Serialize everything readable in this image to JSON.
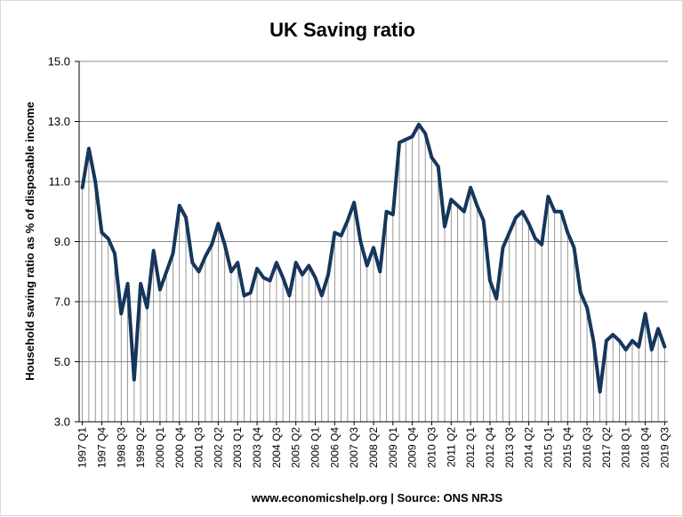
{
  "chart_data": {
    "type": "line",
    "title": "UK Saving ratio",
    "ylabel": "Household saving ratio as % of disposable income",
    "xlabel": "",
    "caption": "www.economicshelp.org | Source: ONS NRJS",
    "ylim": [
      3.0,
      15.0
    ],
    "yticks": [
      "3.0",
      "5.0",
      "7.0",
      "9.0",
      "11.0",
      "13.0",
      "15.0"
    ],
    "grid": "horizontal major gridlines, vertical drop lines from each quarter",
    "legend": "none",
    "line_color": "#16365c",
    "xtick_labels": [
      "1997 Q1",
      "1997 Q4",
      "1998 Q3",
      "1999 Q2",
      "2000 Q1",
      "2000 Q4",
      "2001 Q3",
      "2002 Q2",
      "2003 Q1",
      "2003 Q4",
      "2004 Q3",
      "2005 Q2",
      "2006 Q1",
      "2006 Q4",
      "2007 Q3",
      "2008 Q2",
      "2009 Q1",
      "2009 Q4",
      "2010 Q3",
      "2011 Q2",
      "2012 Q1",
      "2012 Q4",
      "2013 Q3",
      "2014 Q2",
      "2015 Q1",
      "2015 Q4",
      "2016 Q3",
      "2017 Q2",
      "2018 Q1",
      "2018 Q4",
      "2019 Q3"
    ],
    "x": [
      "1997 Q1",
      "1997 Q2",
      "1997 Q3",
      "1997 Q4",
      "1998 Q1",
      "1998 Q2",
      "1998 Q3",
      "1998 Q4",
      "1999 Q1",
      "1999 Q2",
      "1999 Q3",
      "1999 Q4",
      "2000 Q1",
      "2000 Q2",
      "2000 Q3",
      "2000 Q4",
      "2001 Q1",
      "2001 Q2",
      "2001 Q3",
      "2001 Q4",
      "2002 Q1",
      "2002 Q2",
      "2002 Q3",
      "2002 Q4",
      "2003 Q1",
      "2003 Q2",
      "2003 Q3",
      "2003 Q4",
      "2004 Q1",
      "2004 Q2",
      "2004 Q3",
      "2004 Q4",
      "2005 Q1",
      "2005 Q2",
      "2005 Q3",
      "2005 Q4",
      "2006 Q1",
      "2006 Q2",
      "2006 Q3",
      "2006 Q4",
      "2007 Q1",
      "2007 Q2",
      "2007 Q3",
      "2007 Q4",
      "2008 Q1",
      "2008 Q2",
      "2008 Q3",
      "2008 Q4",
      "2009 Q1",
      "2009 Q2",
      "2009 Q3",
      "2009 Q4",
      "2010 Q1",
      "2010 Q2",
      "2010 Q3",
      "2010 Q4",
      "2011 Q1",
      "2011 Q2",
      "2011 Q3",
      "2011 Q4",
      "2012 Q1",
      "2012 Q2",
      "2012 Q3",
      "2012 Q4",
      "2013 Q1",
      "2013 Q2",
      "2013 Q3",
      "2013 Q4",
      "2014 Q1",
      "2014 Q2",
      "2014 Q3",
      "2014 Q4",
      "2015 Q1",
      "2015 Q2",
      "2015 Q3",
      "2015 Q4",
      "2016 Q1",
      "2016 Q2",
      "2016 Q3",
      "2016 Q4",
      "2017 Q1",
      "2017 Q2",
      "2017 Q3",
      "2017 Q4",
      "2018 Q1",
      "2018 Q2",
      "2018 Q3",
      "2018 Q4",
      "2019 Q1",
      "2019 Q2",
      "2019 Q3"
    ],
    "values": [
      10.8,
      12.1,
      11.0,
      9.3,
      9.1,
      8.6,
      6.6,
      7.6,
      4.4,
      7.6,
      6.8,
      8.7,
      7.4,
      8.0,
      8.6,
      10.2,
      9.8,
      8.3,
      8.0,
      8.5,
      8.9,
      9.6,
      8.9,
      8.0,
      8.3,
      7.2,
      7.3,
      8.1,
      7.8,
      7.7,
      8.3,
      7.8,
      7.2,
      8.3,
      7.9,
      8.2,
      7.8,
      7.2,
      7.9,
      9.3,
      9.2,
      9.7,
      10.3,
      9.0,
      8.2,
      8.8,
      8.0,
      10.0,
      9.9,
      12.3,
      12.4,
      12.5,
      12.9,
      12.6,
      11.8,
      11.5,
      9.5,
      10.4,
      10.2,
      10.0,
      10.8,
      10.2,
      9.7,
      7.7,
      7.1,
      8.8,
      9.3,
      9.8,
      10.0,
      9.6,
      9.1,
      8.9,
      10.5,
      10.0,
      10.0,
      9.3,
      8.8,
      7.3,
      6.8,
      5.7,
      4.0,
      5.7,
      5.9,
      5.7,
      5.4,
      5.7,
      5.5,
      6.6,
      5.4,
      6.1,
      5.5
    ]
  }
}
